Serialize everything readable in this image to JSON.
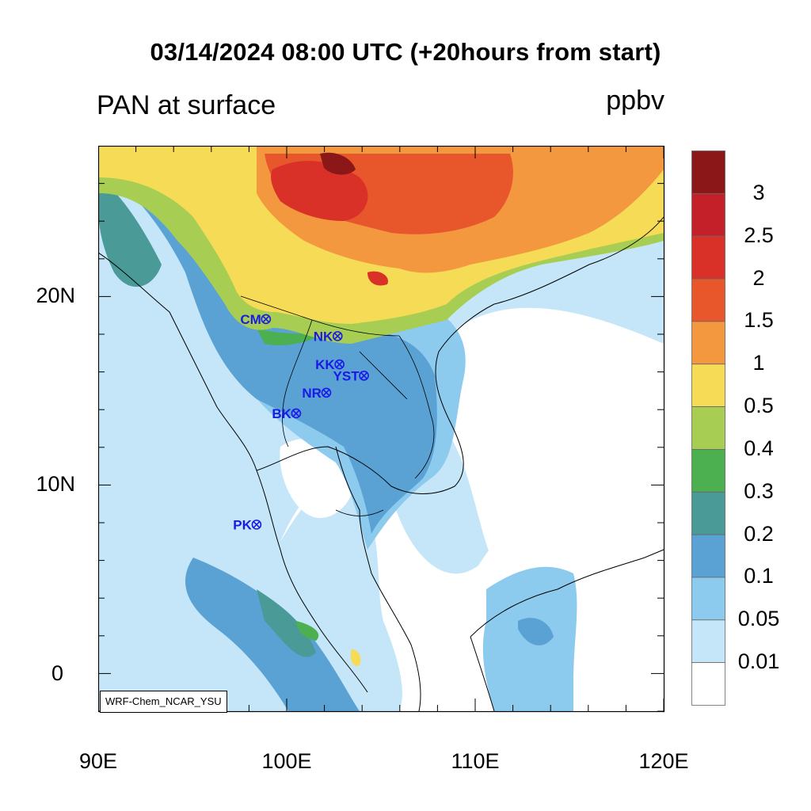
{
  "title": "03/14/2024 08:00 UTC (+20hours from start)",
  "variable": "PAN at surface",
  "units": "ppbv",
  "credit": "WRF-Chem_NCAR_YSU",
  "axes": {
    "x_ticks": [
      "90E",
      "100E",
      "110E",
      "120E"
    ],
    "y_ticks": [
      "20N",
      "10N",
      "0"
    ]
  },
  "colorbar": {
    "levels": [
      "3",
      "2.5",
      "2",
      "1.5",
      "1",
      "0.5",
      "0.4",
      "0.3",
      "0.2",
      "0.1",
      "0.05",
      "0.01"
    ],
    "colors": [
      "#8c1718",
      "#c3202a",
      "#d93028",
      "#e8572c",
      "#f49840",
      "#f6dc56",
      "#a7ce53",
      "#4caf50",
      "#4a9a98",
      "#5aa1d4",
      "#8ccaee",
      "#c4e6f8",
      "#ffffff"
    ]
  },
  "stations": [
    {
      "label": "CM",
      "lon": 98.9,
      "lat": 18.8
    },
    {
      "label": "NK",
      "lon": 102.7,
      "lat": 17.9
    },
    {
      "label": "KK",
      "lon": 102.8,
      "lat": 16.4
    },
    {
      "label": "YST",
      "lon": 104.1,
      "lat": 15.8
    },
    {
      "label": "NR",
      "lon": 102.1,
      "lat": 14.9
    },
    {
      "label": "BK",
      "lon": 100.5,
      "lat": 13.8
    },
    {
      "label": "PK",
      "lon": 98.4,
      "lat": 7.9
    }
  ],
  "colors": {
    "station": "#1a1ae6",
    "frame": "#000000"
  }
}
